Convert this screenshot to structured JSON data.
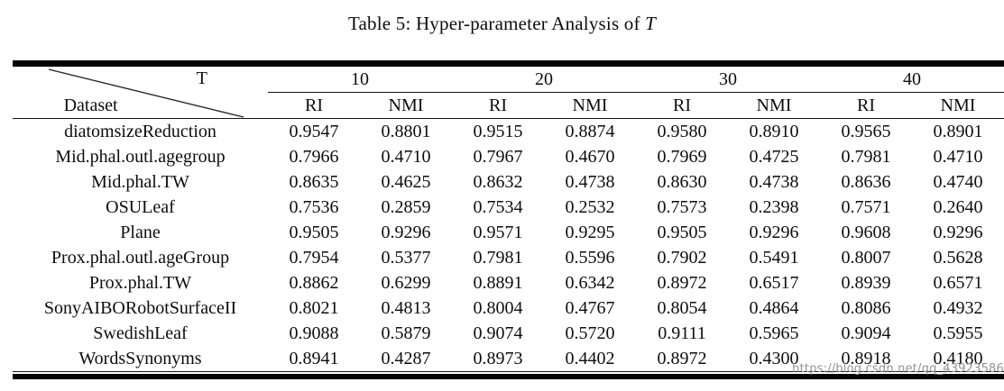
{
  "title": {
    "text": "Table 5: Hyper-parameter Analysis of ",
    "param": "T"
  },
  "watermark": "https://blog.csdn.net/qq_43923586",
  "table": {
    "corner": {
      "top_label": "T",
      "bottom_label": "Dataset"
    },
    "groups": [
      {
        "label": "10",
        "metrics": [
          "RI",
          "NMI"
        ]
      },
      {
        "label": "20",
        "metrics": [
          "RI",
          "NMI"
        ]
      },
      {
        "label": "30",
        "metrics": [
          "RI",
          "NMI"
        ]
      },
      {
        "label": "40",
        "metrics": [
          "RI",
          "NMI"
        ]
      }
    ],
    "rows": [
      {
        "dataset": "diatomsizeReduction",
        "values": [
          "0.9547",
          "0.8801",
          "0.9515",
          "0.8874",
          "0.9580",
          "0.8910",
          "0.9565",
          "0.8901"
        ]
      },
      {
        "dataset": "Mid.phal.outl.agegroup",
        "values": [
          "0.7966",
          "0.4710",
          "0.7967",
          "0.4670",
          "0.7969",
          "0.4725",
          "0.7981",
          "0.4710"
        ]
      },
      {
        "dataset": "Mid.phal.TW",
        "values": [
          "0.8635",
          "0.4625",
          "0.8632",
          "0.4738",
          "0.8630",
          "0.4738",
          "0.8636",
          "0.4740"
        ]
      },
      {
        "dataset": "OSULeaf",
        "values": [
          "0.7536",
          "0.2859",
          "0.7534",
          "0.2532",
          "0.7573",
          "0.2398",
          "0.7571",
          "0.2640"
        ]
      },
      {
        "dataset": "Plane",
        "values": [
          "0.9505",
          "0.9296",
          "0.9571",
          "0.9295",
          "0.9505",
          "0.9296",
          "0.9608",
          "0.9296"
        ]
      },
      {
        "dataset": "Prox.phal.outl.ageGroup",
        "values": [
          "0.7954",
          "0.5377",
          "0.7981",
          "0.5596",
          "0.7902",
          "0.5491",
          "0.8007",
          "0.5628"
        ]
      },
      {
        "dataset": "Prox.phal.TW",
        "values": [
          "0.8862",
          "0.6299",
          "0.8891",
          "0.6342",
          "0.8972",
          "0.6517",
          "0.8939",
          "0.6571"
        ]
      },
      {
        "dataset": "SonyAIBORobotSurfaceII",
        "values": [
          "0.8021",
          "0.4813",
          "0.8004",
          "0.4767",
          "0.8054",
          "0.4864",
          "0.8086",
          "0.4932"
        ]
      },
      {
        "dataset": "SwedishLeaf",
        "values": [
          "0.9088",
          "0.5879",
          "0.9074",
          "0.5720",
          "0.9111",
          "0.5965",
          "0.9094",
          "0.5955"
        ]
      },
      {
        "dataset": "WordsSynonyms",
        "values": [
          "0.8941",
          "0.4287",
          "0.8973",
          "0.4402",
          "0.8972",
          "0.4300",
          "0.8918",
          "0.4180"
        ]
      }
    ]
  }
}
